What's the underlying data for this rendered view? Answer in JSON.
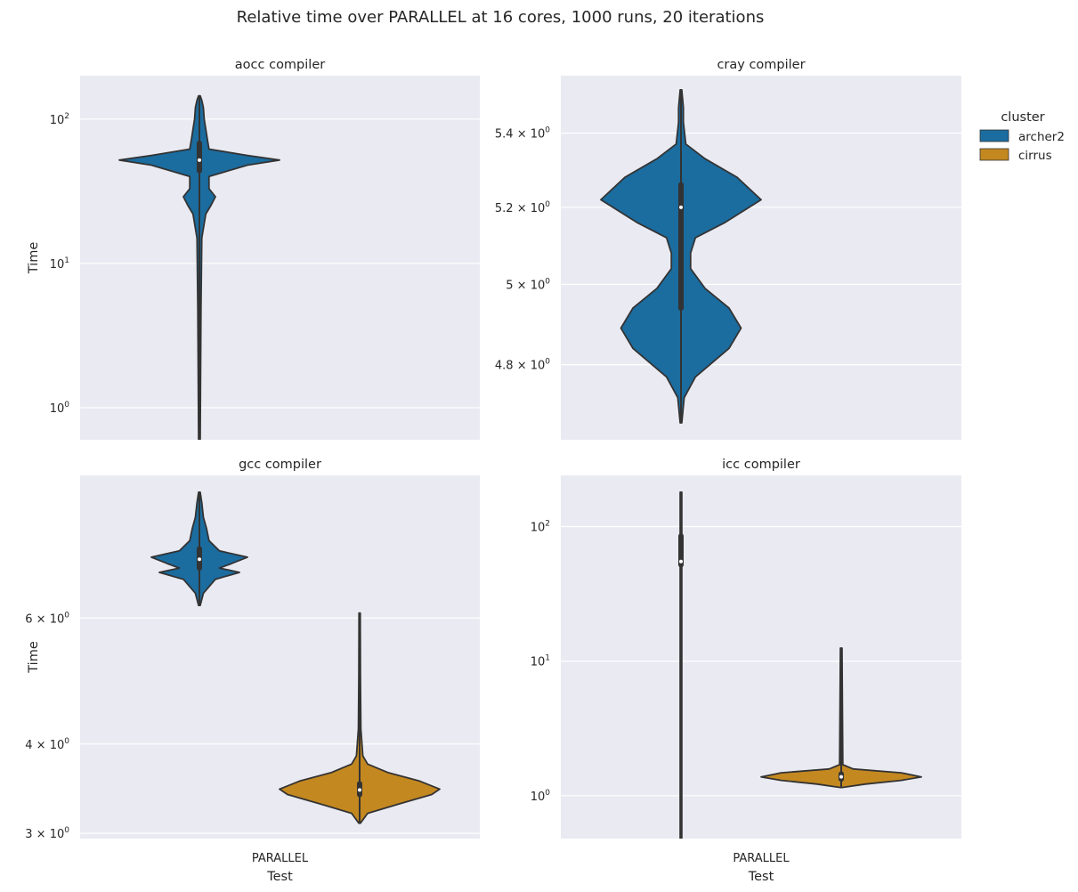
{
  "title": "Relative time over PARALLEL at 16 cores, 1000 runs, 20 iterations",
  "legend": {
    "title": "cluster",
    "placement": "right",
    "items": [
      {
        "label": "archer2",
        "color": "#1b6c9f"
      },
      {
        "label": "cirrus",
        "color": "#c48820"
      }
    ]
  },
  "chart_data": [
    {
      "type": "violin",
      "panel_title": "aocc compiler",
      "ylabel": "Time",
      "xlabel": "",
      "yscale": "log",
      "ylim": [
        0.6,
        200
      ],
      "yticks": [
        {
          "base": "10",
          "exp": "0",
          "value": 1
        },
        {
          "base": "10",
          "exp": "1",
          "value": 10
        },
        {
          "base": "10",
          "exp": "2",
          "value": 100
        }
      ],
      "categories": [],
      "series": [
        {
          "name": "archer2",
          "category": "PARALLEL",
          "median": 52,
          "q1": 44,
          "q3": 68,
          "whisker_low": 0.6,
          "whisker_high": 145,
          "min": 0.6,
          "max": 145,
          "profile": [
            [
              0.6,
              0.01
            ],
            [
              5,
              0.02
            ],
            [
              15,
              0.03
            ],
            [
              22,
              0.08
            ],
            [
              25,
              0.14
            ],
            [
              29,
              0.2
            ],
            [
              33,
              0.12
            ],
            [
              40,
              0.12
            ],
            [
              48,
              0.6
            ],
            [
              52,
              1.0
            ],
            [
              56,
              0.6
            ],
            [
              62,
              0.12
            ],
            [
              72,
              0.1
            ],
            [
              85,
              0.08
            ],
            [
              100,
              0.06
            ],
            [
              120,
              0.05
            ],
            [
              135,
              0.03
            ],
            [
              145,
              0.01
            ]
          ]
        }
      ]
    },
    {
      "type": "violin",
      "panel_title": "cray compiler",
      "ylabel": "",
      "xlabel": "",
      "yscale": "log",
      "ylim": [
        4.62,
        5.56
      ],
      "yticks": [
        {
          "base": "4.8 × 10",
          "exp": "0",
          "value": 4.8
        },
        {
          "base": "5 × 10",
          "exp": "0",
          "value": 5.0
        },
        {
          "base": "5.2 × 10",
          "exp": "0",
          "value": 5.2
        },
        {
          "base": "5.4 × 10",
          "exp": "0",
          "value": 5.4
        }
      ],
      "categories": [],
      "series": [
        {
          "name": "archer2",
          "category": "PARALLEL",
          "median": 5.2,
          "q1": 4.94,
          "q3": 5.26,
          "whisker_low": 4.66,
          "whisker_high": 5.52,
          "min": 4.66,
          "max": 5.52,
          "profile": [
            [
              4.66,
              0.01
            ],
            [
              4.72,
              0.04
            ],
            [
              4.77,
              0.18
            ],
            [
              4.84,
              0.6
            ],
            [
              4.89,
              0.75
            ],
            [
              4.94,
              0.6
            ],
            [
              4.99,
              0.3
            ],
            [
              5.04,
              0.12
            ],
            [
              5.08,
              0.12
            ],
            [
              5.12,
              0.18
            ],
            [
              5.16,
              0.55
            ],
            [
              5.22,
              1.0
            ],
            [
              5.28,
              0.7
            ],
            [
              5.33,
              0.3
            ],
            [
              5.37,
              0.06
            ],
            [
              5.43,
              0.03
            ],
            [
              5.47,
              0.03
            ],
            [
              5.52,
              0.01
            ]
          ]
        }
      ]
    },
    {
      "type": "violin",
      "panel_title": "gcc compiler",
      "ylabel": "Time",
      "xlabel": "",
      "yscale": "log",
      "ylim": [
        2.95,
        9.5
      ],
      "yticks": [
        {
          "base": "3 × 10",
          "exp": "0",
          "value": 3
        },
        {
          "base": "4 × 10",
          "exp": "0",
          "value": 4
        },
        {
          "base": "6 × 10",
          "exp": "0",
          "value": 6
        }
      ],
      "categories": [],
      "series": [
        {
          "name": "archer2",
          "category": "PARALLEL",
          "median": 7.25,
          "q1": 7.05,
          "q3": 7.5,
          "whisker_low": 6.25,
          "whisker_high": 9.0,
          "min": 6.25,
          "max": 9.0,
          "profile": [
            [
              6.25,
              0.01
            ],
            [
              6.5,
              0.05
            ],
            [
              6.8,
              0.2
            ],
            [
              6.95,
              0.5
            ],
            [
              7.05,
              0.25
            ],
            [
              7.15,
              0.4
            ],
            [
              7.3,
              0.6
            ],
            [
              7.45,
              0.25
            ],
            [
              7.7,
              0.12
            ],
            [
              8.0,
              0.09
            ],
            [
              8.3,
              0.05
            ],
            [
              8.7,
              0.03
            ],
            [
              9.0,
              0.01
            ]
          ]
        },
        {
          "name": "cirrus",
          "category": "PARALLEL",
          "median": 3.45,
          "q1": 3.4,
          "q3": 3.52,
          "whisker_low": 3.1,
          "whisker_high": 6.1,
          "min": 3.1,
          "max": 6.1,
          "profile": [
            [
              3.1,
              0.01
            ],
            [
              3.2,
              0.1
            ],
            [
              3.3,
              0.5
            ],
            [
              3.4,
              0.9
            ],
            [
              3.46,
              1.0
            ],
            [
              3.55,
              0.75
            ],
            [
              3.65,
              0.35
            ],
            [
              3.75,
              0.1
            ],
            [
              3.85,
              0.04
            ],
            [
              4.2,
              0.015
            ],
            [
              5.0,
              0.01
            ],
            [
              6.1,
              0.008
            ]
          ]
        }
      ]
    },
    {
      "type": "violin",
      "panel_title": "icc compiler",
      "ylabel": "",
      "xlabel": "Test",
      "yscale": "log",
      "ylim": [
        0.48,
        240
      ],
      "yticks": [
        {
          "base": "10",
          "exp": "0",
          "value": 1
        },
        {
          "base": "10",
          "exp": "1",
          "value": 10
        },
        {
          "base": "10",
          "exp": "2",
          "value": 100
        }
      ],
      "categories": [
        "PARALLEL"
      ],
      "series": [
        {
          "name": "archer2",
          "category": "PARALLEL",
          "median": 55,
          "q1": 52,
          "q3": 85,
          "whisker_low": 0.48,
          "whisker_high": 180,
          "min": 0.48,
          "max": 180,
          "profile": [
            [
              0.48,
              0.01
            ],
            [
              2,
              0.01
            ],
            [
              20,
              0.01
            ],
            [
              50,
              0.01
            ],
            [
              80,
              0.01
            ],
            [
              180,
              0.01
            ]
          ]
        },
        {
          "name": "cirrus",
          "category": "PARALLEL",
          "median": 1.38,
          "q1": 1.33,
          "q3": 1.45,
          "whisker_low": 1.15,
          "whisker_high": 12.5,
          "min": 1.15,
          "max": 12.5,
          "profile": [
            [
              1.15,
              0.01
            ],
            [
              1.22,
              0.3
            ],
            [
              1.3,
              0.75
            ],
            [
              1.38,
              1.0
            ],
            [
              1.48,
              0.75
            ],
            [
              1.58,
              0.15
            ],
            [
              1.7,
              0.02
            ],
            [
              12.5,
              0.01
            ]
          ]
        }
      ]
    }
  ],
  "bottom_left": {
    "tick": "PARALLEL",
    "xlabel": "Test"
  }
}
